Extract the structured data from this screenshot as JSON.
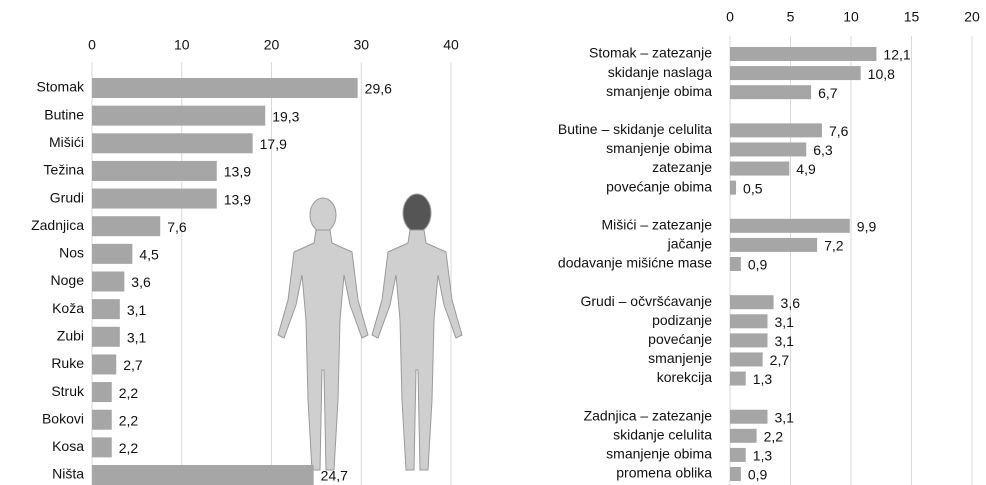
{
  "chart_data": [
    {
      "type": "barh",
      "categories": [
        "Stomak",
        "Butine",
        "Mišići",
        "Težina",
        "Grudi",
        "Zadnjica",
        "Nos",
        "Noge",
        "Koža",
        "Zubi",
        "Ruke",
        "Struk",
        "Bokovi",
        "Kosa",
        "Ništa"
      ],
      "values": [
        29.6,
        19.3,
        17.9,
        13.9,
        13.9,
        7.6,
        4.5,
        3.6,
        3.1,
        3.1,
        2.7,
        2.2,
        2.2,
        2.2,
        24.7
      ],
      "value_labels": [
        "29,6",
        "19,3",
        "17,9",
        "13,9",
        "13,9",
        "7,6",
        "4,5",
        "3,6",
        "3,1",
        "3,1",
        "2,7",
        "2,2",
        "2,2",
        "2,2",
        "24,7"
      ],
      "color": "#a6a6a6",
      "xlim": [
        0,
        40
      ],
      "xticks": [
        0,
        10,
        20,
        30,
        40
      ],
      "grid": true
    },
    {
      "type": "barh",
      "categories": [
        "Stomak – zatezanje",
        "skidanje naslaga",
        "smanjenje obima",
        null,
        "Butine – skidanje celulita",
        "smanjenje obima",
        "zatezanje",
        "povećanje obima",
        null,
        "Mišići – zatezanje",
        "jačanje",
        "dodavanje mišićne mase",
        null,
        "Grudi – očvršćavanje",
        "podizanje",
        "povećanje",
        "smanjenje",
        "korekcija",
        null,
        "Zadnjica – zatezanje",
        "skidanje celulita",
        "smanjenje obima",
        "promena oblika"
      ],
      "values": [
        12.1,
        10.8,
        6.7,
        null,
        7.6,
        6.3,
        4.9,
        0.5,
        null,
        9.9,
        7.2,
        0.9,
        null,
        3.6,
        3.1,
        3.1,
        2.7,
        1.3,
        null,
        3.1,
        2.2,
        1.3,
        0.9
      ],
      "value_labels": [
        "12,1",
        "10,8",
        "6,7",
        null,
        "7,6",
        "6,3",
        "4,9",
        "0,5",
        null,
        "9,9",
        "7,2",
        "0,9",
        null,
        "3,6",
        "3,1",
        "3,1",
        "2,7",
        "1,3",
        null,
        "3,1",
        "2,2",
        "1,3",
        "0,9"
      ],
      "color": "#a6a6a6",
      "xlim": [
        0,
        20
      ],
      "xticks": [
        0,
        5,
        10,
        15,
        20
      ],
      "grid": true
    }
  ]
}
